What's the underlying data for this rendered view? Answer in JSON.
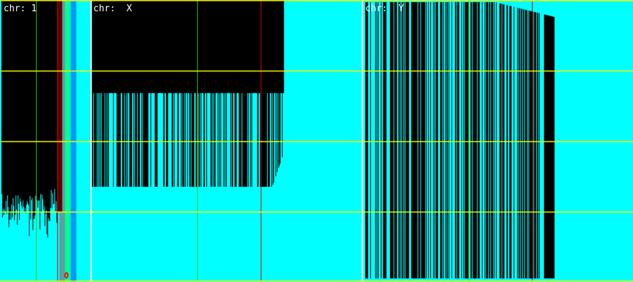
{
  "panels": [
    {
      "label": "chr: 1"
    },
    {
      "label": "chr:  X"
    },
    {
      "label": "chr:  Y"
    }
  ],
  "colors": {
    "background": "#00ffff",
    "panel": "#000000",
    "gridline": "#ffff00",
    "separator": "#ffffff",
    "marker_line_green": "#33cc00",
    "marker_line_red": "#dd0000",
    "stripe_darkred": "#5a0000",
    "stripe_grey": "#5f9ea0",
    "stripe_green": "#00ff99",
    "stripe_blue": "#0099ff"
  },
  "marker": {
    "icon": "diamond-marker-icon"
  }
}
